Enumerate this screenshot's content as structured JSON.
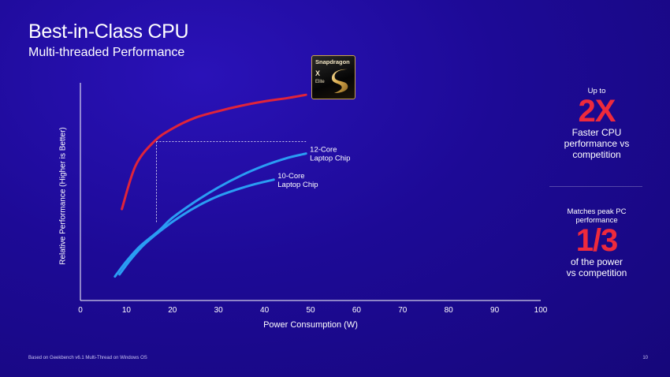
{
  "title": "Best-in-Class CPU",
  "subtitle": "Multi-threaded Performance",
  "footnote": "Based on Geekbench v6.1 Multi-Thread on Windows OS",
  "page_number": "10",
  "logo": {
    "brand": "Snapdragon",
    "model": "X",
    "edition": "Elite"
  },
  "stat1": {
    "pre": "Up to",
    "big": "2X",
    "desc_lines": [
      "Faster CPU",
      "performance vs",
      "competition"
    ]
  },
  "stat2": {
    "pre_lines": [
      "Matches peak PC",
      "performance"
    ],
    "big": "1/3",
    "desc_lines": [
      "of the power",
      "vs competition"
    ]
  },
  "colors": {
    "snapdragon": "#e0243a",
    "competitor": "#2a9df4",
    "accent_text": "#ee2a3c",
    "background": "#1d0a96"
  },
  "chart_data": {
    "type": "line",
    "xlabel": "Power Consumption (W)",
    "ylabel": "Relative Performance  (Higher is Better)",
    "xlim": [
      0,
      100
    ],
    "xticks": [
      0,
      10,
      20,
      30,
      40,
      50,
      60,
      70,
      80,
      90,
      100
    ],
    "ylim": [
      0,
      100
    ],
    "grid": false,
    "series": [
      {
        "name": "",
        "color": "#e0243a",
        "x": [
          9,
          12,
          16,
          20,
          25,
          30,
          35,
          40,
          45,
          49
        ],
        "y": [
          42,
          62,
          73,
          79,
          84,
          87,
          89.5,
          91.5,
          93,
          94.5
        ]
      },
      {
        "name": "12-Core Laptop Chip",
        "color": "#2a9df4",
        "x": [
          7.5,
          10,
          13,
          17,
          20,
          25,
          30,
          35,
          40,
          45,
          49
        ],
        "y": [
          11,
          18,
          25,
          32,
          38,
          45.5,
          52,
          57.5,
          62,
          65.5,
          67.5
        ]
      },
      {
        "name": "10-Core Laptop Chip",
        "color": "#2a9df4",
        "x": [
          8.5,
          11,
          14,
          18,
          22,
          26,
          30,
          34,
          38,
          42
        ],
        "y": [
          12,
          19,
          26,
          33,
          39,
          44,
          48,
          51,
          53.5,
          55.5
        ]
      }
    ],
    "annotation": {
      "from": [
        16.5,
        73
      ],
      "to_x": 49,
      "type": "dashed-reference"
    }
  }
}
